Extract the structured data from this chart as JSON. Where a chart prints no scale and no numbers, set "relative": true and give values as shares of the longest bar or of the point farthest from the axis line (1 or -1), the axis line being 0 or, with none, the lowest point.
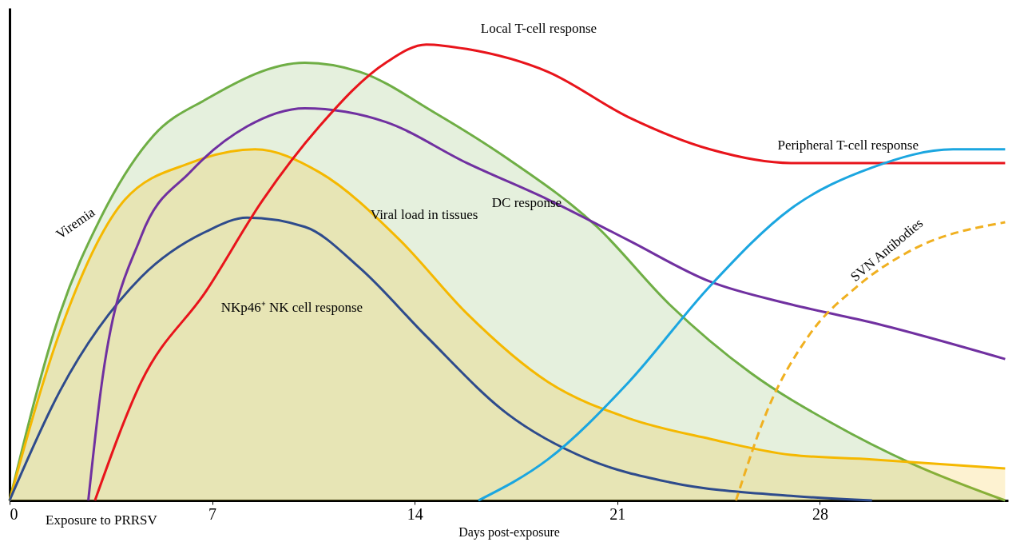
{
  "chart_data": {
    "type": "line",
    "relative": true,
    "xlabel": "Days post-exposure",
    "xlim": [
      0,
      34.5
    ],
    "xticks": [
      0,
      7,
      14,
      21,
      28
    ],
    "grid": false,
    "annotations": [
      {
        "text": "Exposure to PRRSV",
        "x": 0,
        "y": 0
      }
    ],
    "series": [
      {
        "name": "Viremia",
        "type": "area",
        "color": "#6fae45",
        "x": [
          0,
          1.74,
          3.15,
          4.97,
          6.8,
          10.2,
          12.1,
          14.7,
          17.2,
          20.3,
          22.8,
          25.6,
          28.4,
          31.2,
          34.4
        ],
        "values": [
          0,
          0.41,
          0.62,
          0.8,
          0.88,
          0.96,
          0.94,
          0.85,
          0.75,
          0.6,
          0.43,
          0.28,
          0.17,
          0.08,
          0
        ]
      },
      {
        "name": "Viral load in tissues",
        "type": "area",
        "color": "#f5b800",
        "x": [
          0,
          1.74,
          3.99,
          6.24,
          8.48,
          10.7,
          13.5,
          15.8,
          18.6,
          21.4,
          24.2,
          27.0,
          29.8,
          34.4
        ],
        "values": [
          0,
          0.37,
          0.66,
          0.74,
          0.77,
          0.72,
          0.57,
          0.41,
          0.26,
          0.18,
          0.135,
          0.1,
          0.09,
          0.07
        ]
      },
      {
        "name": "NKp46⁺ NK cell response",
        "color": "#2e4b8c",
        "x": [
          0,
          1.74,
          4.55,
          6.8,
          8.2,
          10.2,
          12.1,
          14.4,
          17.2,
          20.0,
          22.8,
          27.0,
          29.8
        ],
        "values": [
          0,
          0.24,
          0.49,
          0.59,
          0.62,
          0.6,
          0.51,
          0.36,
          0.19,
          0.09,
          0.04,
          0.01,
          0
        ]
      },
      {
        "name": "DC response",
        "color": "#7030a0",
        "x": [
          2.72,
          3.15,
          4.55,
          6.24,
          8.2,
          10.2,
          13.0,
          15.8,
          18.6,
          21.4,
          24.2,
          27.0,
          29.8,
          34.4
        ],
        "values": [
          0,
          0.24,
          0.58,
          0.72,
          0.82,
          0.86,
          0.83,
          0.74,
          0.66,
          0.57,
          0.48,
          0.43,
          0.39,
          0.31
        ]
      },
      {
        "name": "Local T-cell response",
        "color": "#e8141b",
        "x": [
          2.95,
          4.55,
          6.8,
          8.76,
          10.7,
          13.0,
          14.4,
          15.8,
          18.6,
          21.4,
          24.2,
          27.0,
          34.4
        ],
        "values": [
          0,
          0.26,
          0.46,
          0.66,
          0.82,
          0.96,
          1.0,
          0.99,
          0.94,
          0.84,
          0.77,
          0.74,
          0.74
        ]
      },
      {
        "name": "Peripheral T-cell response",
        "color": "#1ba6e0",
        "x": [
          16.2,
          18.6,
          21.4,
          24.2,
          27.0,
          29.8,
          32.6,
          34.4
        ],
        "values": [
          0,
          0.09,
          0.26,
          0.47,
          0.64,
          0.73,
          0.77,
          0.77
        ]
      },
      {
        "name": "SVN Antibodies",
        "color": "#f0b020",
        "line_style": "dashed",
        "x": [
          25.1,
          26.2,
          27.6,
          29.3,
          31.2,
          34.4
        ],
        "values": [
          0,
          0.2,
          0.36,
          0.47,
          0.55,
          0.61
        ]
      }
    ]
  }
}
